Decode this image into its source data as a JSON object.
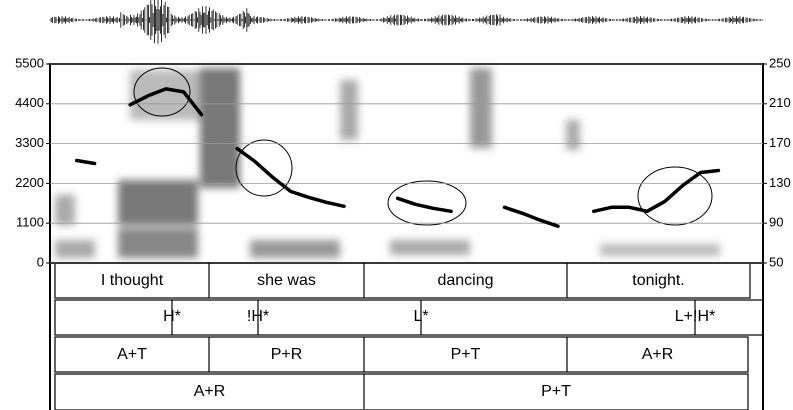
{
  "chart_data": {
    "type": "spectrogram",
    "categories": [
      null,
      null,
      null,
      null,
      null,
      null,
      null,
      null,
      null,
      null,
      null,
      null,
      null,
      null,
      null,
      null,
      null,
      null,
      null,
      null,
      null,
      null,
      null,
      null,
      null,
      null,
      null,
      null,
      null,
      null,
      null,
      null,
      null,
      null,
      null,
      null,
      null,
      null,
      null,
      null
    ],
    "series": [
      {
        "color": "#000000",
        "axis": "y2",
        "values": [
          null,
          153,
          150,
          null,
          209,
          218,
          225,
          222,
          199,
          null,
          165,
          152,
          136,
          122,
          116,
          111,
          107,
          null,
          null,
          115,
          109,
          105,
          102,
          null,
          null,
          106,
          100,
          93,
          87,
          null,
          102,
          106,
          106,
          102,
          112,
          128,
          141,
          143,
          null,
          null
        ]
      }
    ],
    "ylim": [
      0,
      5500
    ],
    "yticks": [
      0,
      1100,
      2200,
      3300,
      4400,
      5500
    ],
    "y2lim": [
      50,
      250
    ],
    "y2ticks": [
      50,
      90,
      130,
      170,
      210,
      250
    ],
    "grid": true
  },
  "tiers": [
    {
      "labels": [
        "I thought",
        "she was",
        "dancing",
        "tonight."
      ]
    },
    {
      "labels": [
        "H*",
        "!H*",
        "L*",
        "L+!H*"
      ]
    },
    {
      "labels": [
        "A+T",
        "P+R",
        "P+T",
        "A+R"
      ]
    },
    {
      "labels": [
        "A+R",
        "P+T"
      ]
    }
  ]
}
